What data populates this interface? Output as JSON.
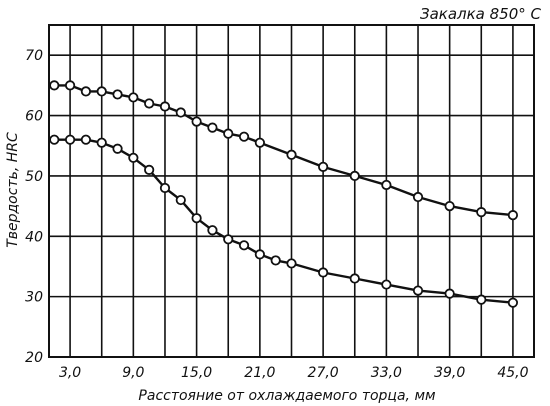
{
  "chart_data": {
    "type": "line",
    "title": "Закалка 850° C",
    "xlabel": "Расстояние от охлаждаемого торца, мм",
    "ylabel": "Твердость, HRC",
    "xlim": [
      1.0,
      47.0
    ],
    "ylim": [
      20,
      75
    ],
    "x_ticks": [
      3.0,
      6.0,
      9.0,
      12.0,
      15.0,
      18.0,
      21.0,
      24.0,
      27.0,
      30.0,
      33.0,
      36.0,
      39.0,
      42.0,
      45.0
    ],
    "x_tick_labels": [
      "3,0",
      "",
      "9,0",
      "",
      "15,0",
      "",
      "21,0",
      "",
      "27,0",
      "",
      "33,0",
      "",
      "39,0",
      "",
      "45,0"
    ],
    "y_ticks": [
      20,
      30,
      40,
      50,
      60,
      70
    ],
    "y_tick_labels": [
      "20",
      "30",
      "40",
      "50",
      "60",
      "70"
    ],
    "grid": true,
    "legend": "none",
    "series": [
      {
        "x": [
          1.5,
          3.0,
          4.5,
          6.0,
          7.5,
          9.0,
          10.5,
          12.0,
          13.5,
          15.0,
          16.5,
          18.0,
          19.5,
          21.0,
          24.0,
          27.0,
          30.0,
          33.0,
          36.0,
          39.0,
          42.0,
          45.0
        ],
        "y": [
          65,
          65,
          64,
          64,
          63.5,
          63,
          62,
          61.5,
          60.5,
          59,
          58,
          57,
          56.5,
          55.5,
          53.5,
          51.5,
          50,
          48.5,
          46.5,
          45,
          44,
          43.5
        ]
      },
      {
        "x": [
          1.5,
          3.0,
          4.5,
          6.0,
          7.5,
          9.0,
          10.5,
          12.0,
          13.5,
          15.0,
          16.5,
          18.0,
          19.5,
          21.0,
          22.5,
          24.0,
          27.0,
          30.0,
          33.0,
          36.0,
          39.0,
          42.0,
          45.0
        ],
        "y": [
          56,
          56,
          56,
          55.5,
          54.5,
          53,
          51,
          48,
          46,
          43,
          41,
          39.5,
          38.5,
          37,
          36,
          35.5,
          34,
          33,
          32,
          31,
          30.5,
          29.5,
          29
        ]
      }
    ]
  }
}
